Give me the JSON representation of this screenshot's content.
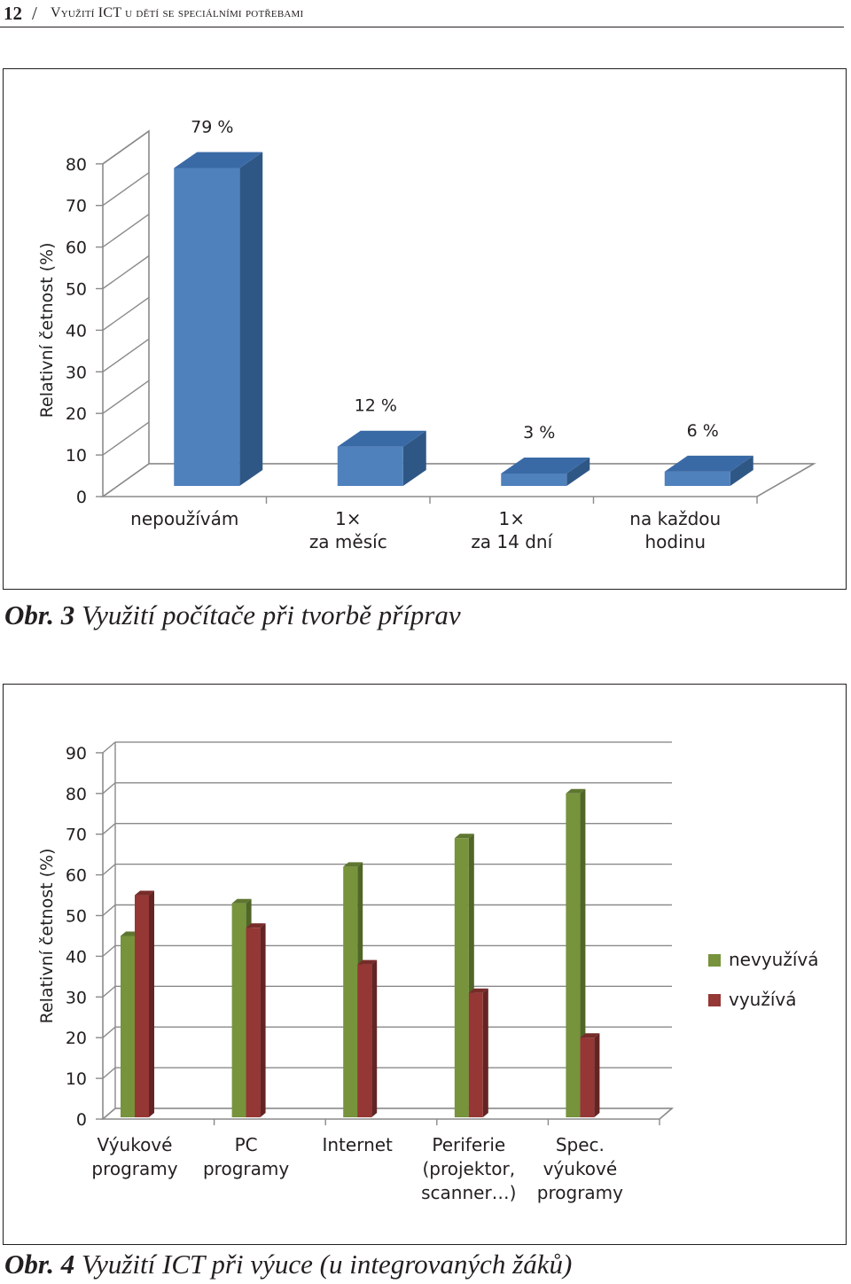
{
  "header": {
    "page_number": "12",
    "separator": "/",
    "running_title": "Využití ICT u dětí se speciálními potřebami"
  },
  "figure1": {
    "caption_label": "Obr. 3",
    "caption_text": "Využití počítače při tvorbě příprav"
  },
  "figure2": {
    "caption_label": "Obr. 4",
    "caption_text": "Využití ICT při výuce (u integrovaných žáků)"
  },
  "chart_data": [
    {
      "type": "bar",
      "ylabel": "Relativní četnost (%)",
      "xlabel": "",
      "ylim": [
        0,
        80
      ],
      "yticks": [
        0,
        10,
        20,
        30,
        40,
        50,
        60,
        70,
        80
      ],
      "grid": false,
      "three_d": true,
      "categories": [
        [
          "nepoužívám"
        ],
        [
          "1×",
          "za měsíc"
        ],
        [
          "1×",
          "za 14 dní"
        ],
        [
          "na každou",
          "hodinu"
        ]
      ],
      "values": [
        79,
        12,
        3,
        6
      ],
      "data_labels": [
        "79 %",
        "12 %",
        "3 %",
        "6 %"
      ],
      "colors": {
        "bar_front": "#4f81bd",
        "bar_side": "#2f5786",
        "bar_top": "#3a6aa6"
      }
    },
    {
      "type": "bar",
      "ylabel": "Relativní četnost (%)",
      "xlabel": "",
      "ylim": [
        0,
        90
      ],
      "yticks": [
        0,
        10,
        20,
        30,
        40,
        50,
        60,
        70,
        80,
        90
      ],
      "grid": true,
      "three_d": true,
      "legend_position": "right",
      "categories": [
        [
          "Výukové",
          "programy"
        ],
        [
          "PC",
          "programy"
        ],
        [
          "Internet"
        ],
        [
          "Periferie",
          "(projektor,",
          "scanner…)"
        ],
        [
          "Spec.",
          "výukové",
          "programy"
        ]
      ],
      "series": [
        {
          "name": "nevyužívá",
          "values": [
            45,
            53,
            62,
            69,
            80
          ],
          "color": "#77933c",
          "side": "#4f6627"
        },
        {
          "name": "využívá",
          "values": [
            55,
            47,
            38,
            31,
            20
          ],
          "color": "#953735",
          "side": "#632423"
        }
      ]
    }
  ]
}
